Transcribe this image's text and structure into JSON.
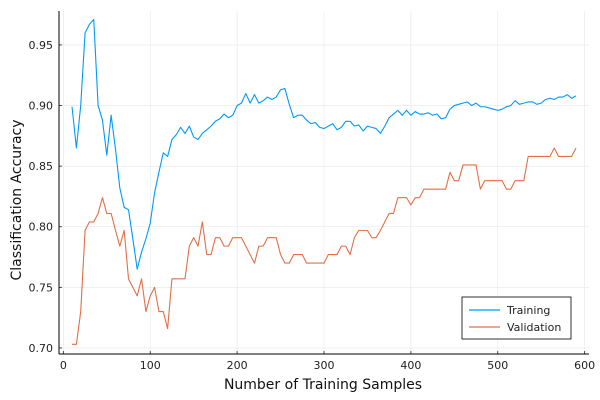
{
  "chart_data": {
    "type": "line",
    "title": "",
    "xlabel": "Number of Training Samples",
    "ylabel": "Classification Accuracy",
    "xlim": [
      -5,
      605
    ],
    "ylim": [
      0.695,
      0.978
    ],
    "xticks": [
      0,
      100,
      200,
      300,
      400,
      500,
      600
    ],
    "xtick_labels": [
      "0",
      "100",
      "200",
      "300",
      "400",
      "500",
      "600"
    ],
    "yticks": [
      0.7,
      0.75,
      0.8,
      0.85,
      0.9,
      0.95
    ],
    "ytick_labels": [
      "0.70",
      "0.75",
      "0.80",
      "0.85",
      "0.90",
      "0.95"
    ],
    "grid": true,
    "legend_position": "bottom-right",
    "series": [
      {
        "name": "Training",
        "color": "#009AFA",
        "points": [
          [
            10,
            0.899
          ],
          [
            15,
            0.865
          ],
          [
            20,
            0.9
          ],
          [
            25,
            0.96
          ],
          [
            30,
            0.967
          ],
          [
            35,
            0.971
          ],
          [
            40,
            0.9
          ],
          [
            45,
            0.888
          ],
          [
            50,
            0.859
          ],
          [
            55,
            0.892
          ],
          [
            60,
            0.864
          ],
          [
            65,
            0.832
          ],
          [
            70,
            0.816
          ],
          [
            75,
            0.814
          ],
          [
            80,
            0.79
          ],
          [
            85,
            0.765
          ],
          [
            90,
            0.779
          ],
          [
            95,
            0.79
          ],
          [
            100,
            0.803
          ],
          [
            105,
            0.828
          ],
          [
            110,
            0.845
          ],
          [
            115,
            0.861
          ],
          [
            120,
            0.858
          ],
          [
            125,
            0.872
          ],
          [
            130,
            0.876
          ],
          [
            135,
            0.882
          ],
          [
            140,
            0.877
          ],
          [
            145,
            0.883
          ],
          [
            150,
            0.874
          ],
          [
            155,
            0.872
          ],
          [
            160,
            0.877
          ],
          [
            165,
            0.88
          ],
          [
            170,
            0.883
          ],
          [
            175,
            0.887
          ],
          [
            180,
            0.889
          ],
          [
            185,
            0.893
          ],
          [
            190,
            0.89
          ],
          [
            195,
            0.892
          ],
          [
            200,
            0.9
          ],
          [
            205,
            0.902
          ],
          [
            210,
            0.91
          ],
          [
            215,
            0.902
          ],
          [
            220,
            0.909
          ],
          [
            225,
            0.902
          ],
          [
            230,
            0.904
          ],
          [
            235,
            0.907
          ],
          [
            240,
            0.905
          ],
          [
            245,
            0.907
          ],
          [
            250,
            0.913
          ],
          [
            255,
            0.914
          ],
          [
            260,
            0.901
          ],
          [
            265,
            0.89
          ],
          [
            270,
            0.892
          ],
          [
            275,
            0.892
          ],
          [
            280,
            0.888
          ],
          [
            285,
            0.885
          ],
          [
            290,
            0.886
          ],
          [
            295,
            0.882
          ],
          [
            300,
            0.881
          ],
          [
            305,
            0.883
          ],
          [
            310,
            0.885
          ],
          [
            315,
            0.88
          ],
          [
            320,
            0.882
          ],
          [
            325,
            0.887
          ],
          [
            330,
            0.887
          ],
          [
            335,
            0.883
          ],
          [
            340,
            0.884
          ],
          [
            345,
            0.879
          ],
          [
            350,
            0.883
          ],
          [
            355,
            0.882
          ],
          [
            360,
            0.881
          ],
          [
            365,
            0.877
          ],
          [
            370,
            0.883
          ],
          [
            375,
            0.89
          ],
          [
            380,
            0.893
          ],
          [
            385,
            0.896
          ],
          [
            390,
            0.892
          ],
          [
            395,
            0.896
          ],
          [
            400,
            0.892
          ],
          [
            405,
            0.895
          ],
          [
            410,
            0.893
          ],
          [
            415,
            0.893
          ],
          [
            420,
            0.894
          ],
          [
            425,
            0.892
          ],
          [
            430,
            0.893
          ],
          [
            435,
            0.889
          ],
          [
            440,
            0.89
          ],
          [
            445,
            0.897
          ],
          [
            450,
            0.9
          ],
          [
            455,
            0.901
          ],
          [
            460,
            0.902
          ],
          [
            465,
            0.903
          ],
          [
            470,
            0.9
          ],
          [
            475,
            0.902
          ],
          [
            480,
            0.899
          ],
          [
            485,
            0.899
          ],
          [
            490,
            0.898
          ],
          [
            495,
            0.897
          ],
          [
            500,
            0.896
          ],
          [
            505,
            0.897
          ],
          [
            510,
            0.899
          ],
          [
            515,
            0.9
          ],
          [
            520,
            0.904
          ],
          [
            525,
            0.901
          ],
          [
            530,
            0.902
          ],
          [
            535,
            0.903
          ],
          [
            540,
            0.903
          ],
          [
            545,
            0.901
          ],
          [
            550,
            0.902
          ],
          [
            555,
            0.905
          ],
          [
            560,
            0.906
          ],
          [
            565,
            0.905
          ],
          [
            570,
            0.907
          ],
          [
            575,
            0.907
          ],
          [
            580,
            0.909
          ],
          [
            585,
            0.906
          ],
          [
            590,
            0.908
          ]
        ]
      },
      {
        "name": "Validation",
        "color": "#E26F46",
        "points": [
          [
            10,
            0.703
          ],
          [
            15,
            0.703
          ],
          [
            20,
            0.73
          ],
          [
            25,
            0.797
          ],
          [
            30,
            0.804
          ],
          [
            35,
            0.804
          ],
          [
            40,
            0.811
          ],
          [
            45,
            0.824
          ],
          [
            50,
            0.811
          ],
          [
            55,
            0.811
          ],
          [
            60,
            0.797
          ],
          [
            65,
            0.784
          ],
          [
            70,
            0.797
          ],
          [
            75,
            0.757
          ],
          [
            80,
            0.75
          ],
          [
            85,
            0.743
          ],
          [
            90,
            0.757
          ],
          [
            95,
            0.73
          ],
          [
            100,
            0.743
          ],
          [
            105,
            0.75
          ],
          [
            110,
            0.73
          ],
          [
            115,
            0.73
          ],
          [
            120,
            0.716
          ],
          [
            125,
            0.757
          ],
          [
            130,
            0.757
          ],
          [
            135,
            0.757
          ],
          [
            140,
            0.757
          ],
          [
            145,
            0.784
          ],
          [
            150,
            0.791
          ],
          [
            155,
            0.784
          ],
          [
            160,
            0.804
          ],
          [
            165,
            0.777
          ],
          [
            170,
            0.777
          ],
          [
            175,
            0.791
          ],
          [
            180,
            0.791
          ],
          [
            185,
            0.784
          ],
          [
            190,
            0.784
          ],
          [
            195,
            0.791
          ],
          [
            200,
            0.791
          ],
          [
            205,
            0.791
          ],
          [
            210,
            0.784
          ],
          [
            215,
            0.777
          ],
          [
            220,
            0.77
          ],
          [
            225,
            0.784
          ],
          [
            230,
            0.784
          ],
          [
            235,
            0.791
          ],
          [
            240,
            0.791
          ],
          [
            245,
            0.791
          ],
          [
            250,
            0.777
          ],
          [
            255,
            0.77
          ],
          [
            260,
            0.77
          ],
          [
            265,
            0.777
          ],
          [
            270,
            0.777
          ],
          [
            275,
            0.777
          ],
          [
            280,
            0.77
          ],
          [
            285,
            0.77
          ],
          [
            290,
            0.77
          ],
          [
            295,
            0.77
          ],
          [
            300,
            0.77
          ],
          [
            305,
            0.777
          ],
          [
            310,
            0.777
          ],
          [
            315,
            0.777
          ],
          [
            320,
            0.784
          ],
          [
            325,
            0.784
          ],
          [
            330,
            0.777
          ],
          [
            335,
            0.791
          ],
          [
            340,
            0.797
          ],
          [
            345,
            0.797
          ],
          [
            350,
            0.797
          ],
          [
            355,
            0.791
          ],
          [
            360,
            0.791
          ],
          [
            365,
            0.797
          ],
          [
            370,
            0.804
          ],
          [
            375,
            0.811
          ],
          [
            380,
            0.811
          ],
          [
            385,
            0.824
          ],
          [
            390,
            0.824
          ],
          [
            395,
            0.824
          ],
          [
            400,
            0.818
          ],
          [
            405,
            0.824
          ],
          [
            410,
            0.824
          ],
          [
            415,
            0.831
          ],
          [
            420,
            0.831
          ],
          [
            425,
            0.831
          ],
          [
            430,
            0.831
          ],
          [
            435,
            0.831
          ],
          [
            440,
            0.831
          ],
          [
            445,
            0.845
          ],
          [
            450,
            0.838
          ],
          [
            455,
            0.838
          ],
          [
            460,
            0.851
          ],
          [
            465,
            0.851
          ],
          [
            470,
            0.851
          ],
          [
            475,
            0.851
          ],
          [
            480,
            0.831
          ],
          [
            485,
            0.838
          ],
          [
            490,
            0.838
          ],
          [
            495,
            0.838
          ],
          [
            500,
            0.838
          ],
          [
            505,
            0.838
          ],
          [
            510,
            0.831
          ],
          [
            515,
            0.831
          ],
          [
            520,
            0.838
          ],
          [
            525,
            0.838
          ],
          [
            530,
            0.838
          ],
          [
            535,
            0.858
          ],
          [
            540,
            0.858
          ],
          [
            545,
            0.858
          ],
          [
            550,
            0.858
          ],
          [
            555,
            0.858
          ],
          [
            560,
            0.858
          ],
          [
            565,
            0.865
          ],
          [
            570,
            0.858
          ],
          [
            575,
            0.858
          ],
          [
            580,
            0.858
          ],
          [
            585,
            0.858
          ],
          [
            590,
            0.865
          ]
        ]
      }
    ]
  }
}
